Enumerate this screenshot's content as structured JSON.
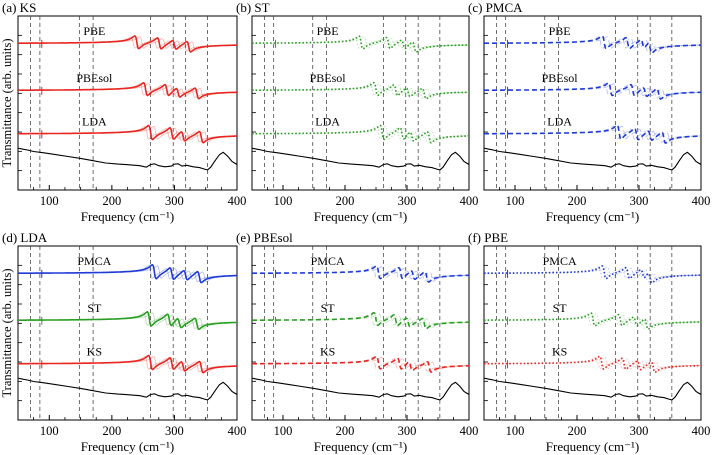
{
  "chart_data": [
    {
      "id": "a",
      "type": "line",
      "panel_label": "(a) KS",
      "xlabel": "Frequency (cm⁻¹)",
      "ylabel": "Transmittance (arb. units)",
      "xlim": [
        50,
        400
      ],
      "xticks": [
        100,
        200,
        300,
        400
      ],
      "reference_lines": [
        70,
        85,
        148,
        170,
        262,
        298,
        318,
        353
      ],
      "style": "solid",
      "traces": [
        {
          "label": "PBE",
          "color": "#e8251f",
          "modes": [
            [
              240,
              0.9
            ],
            [
              276,
              0.8
            ],
            [
              300,
              0.65
            ],
            [
              323,
              0.75
            ]
          ],
          "offset": 0.15
        },
        {
          "label": "PBEsol",
          "color": "#e8251f",
          "modes": [
            [
              254,
              0.9
            ],
            [
              288,
              0.8
            ],
            [
              306,
              0.65
            ],
            [
              336,
              0.75
            ]
          ],
          "offset": 0.15
        },
        {
          "label": "LDA",
          "color": "#e8251f",
          "modes": [
            [
              262,
              1.0
            ],
            [
              296,
              0.85
            ],
            [
              314,
              0.7
            ],
            [
              343,
              0.8
            ]
          ],
          "offset": 0.15
        }
      ]
    },
    {
      "id": "b",
      "type": "line",
      "panel_label": "(b) ST",
      "xlabel": "Frequency (cm⁻¹)",
      "ylabel": "",
      "xlim": [
        50,
        400
      ],
      "xticks": [
        100,
        200,
        300,
        400
      ],
      "reference_lines": [
        70,
        85,
        148,
        170,
        262,
        298,
        318,
        353
      ],
      "style": "dotted",
      "traces": [
        {
          "label": "PBE",
          "color": "#2a9e22",
          "modes": [
            [
              226,
              0.9
            ],
            [
              270,
              0.8
            ],
            [
              294,
              0.65
            ],
            [
              312,
              0.75
            ]
          ],
          "offset": 0.2
        },
        {
          "label": "PBEsol",
          "color": "#2a9e22",
          "modes": [
            [
              250,
              0.9
            ],
            [
              282,
              0.8
            ],
            [
              302,
              0.65
            ],
            [
              328,
              0.75
            ]
          ],
          "offset": 0.2
        },
        {
          "label": "LDA",
          "color": "#2a9e22",
          "modes": [
            [
              260,
              1.0
            ],
            [
              292,
              0.85
            ],
            [
              308,
              0.7
            ],
            [
              336,
              0.8
            ]
          ],
          "offset": 0.2
        }
      ]
    },
    {
      "id": "c",
      "type": "line",
      "panel_label": "(c) PMCA",
      "xlabel": "Frequency (cm⁻¹)",
      "ylabel": "",
      "xlim": [
        50,
        400
      ],
      "xticks": [
        100,
        200,
        300,
        400
      ],
      "reference_lines": [
        70,
        85,
        148,
        170,
        262,
        298,
        318,
        353
      ],
      "style": "dashed",
      "traces": [
        {
          "label": "PBE",
          "color": "#1f3bd6",
          "modes": [
            [
              244,
              0.9
            ],
            [
              282,
              0.8
            ],
            [
              306,
              0.65
            ],
            [
              318,
              0.75
            ]
          ],
          "offset": 0.15
        },
        {
          "label": "PBEsol",
          "color": "#1f3bd6",
          "modes": [
            [
              254,
              0.9
            ],
            [
              290,
              0.8
            ],
            [
              310,
              0.65
            ],
            [
              332,
              0.75
            ]
          ],
          "offset": 0.15
        },
        {
          "label": "LDA",
          "color": "#1f3bd6",
          "modes": [
            [
              268,
              1.0
            ],
            [
              296,
              0.85
            ],
            [
              318,
              0.7
            ],
            [
              340,
              0.8
            ]
          ],
          "offset": 0.15
        }
      ]
    },
    {
      "id": "d",
      "type": "line",
      "panel_label": "(d) LDA",
      "xlabel": "Frequency (cm⁻¹)",
      "ylabel": "Transmittance (arb. units)",
      "xlim": [
        50,
        400
      ],
      "xticks": [
        100,
        200,
        300,
        400
      ],
      "reference_lines": [
        70,
        85,
        148,
        170,
        262,
        298,
        318,
        353
      ],
      "style": "solid",
      "traces": [
        {
          "label": "PMCA",
          "color": "#1f3bd6",
          "modes": [
            [
              268,
              1.0
            ],
            [
              296,
              0.85
            ],
            [
              318,
              0.7
            ],
            [
              340,
              0.8
            ]
          ],
          "offset": 0.15
        },
        {
          "label": "ST",
          "color": "#2a9e22",
          "modes": [
            [
              260,
              1.0
            ],
            [
              292,
              0.85
            ],
            [
              308,
              0.7
            ],
            [
              336,
              0.8
            ]
          ],
          "offset": 0.15
        },
        {
          "label": "KS",
          "color": "#e8251f",
          "modes": [
            [
              262,
              1.0
            ],
            [
              296,
              0.85
            ],
            [
              314,
              0.7
            ],
            [
              343,
              0.8
            ]
          ],
          "offset": 0.15
        }
      ]
    },
    {
      "id": "e",
      "type": "line",
      "panel_label": "(e) PBEsol",
      "xlabel": "Frequency (cm⁻¹)",
      "ylabel": "",
      "xlim": [
        50,
        400
      ],
      "xticks": [
        100,
        200,
        300,
        400
      ],
      "reference_lines": [
        70,
        85,
        148,
        170,
        262,
        298,
        318,
        353
      ],
      "style": "dashed",
      "traces": [
        {
          "label": "PMCA",
          "color": "#1f3bd6",
          "modes": [
            [
              254,
              0.9
            ],
            [
              290,
              0.8
            ],
            [
              310,
              0.65
            ],
            [
              332,
              0.75
            ]
          ],
          "offset": 0.15
        },
        {
          "label": "ST",
          "color": "#2a9e22",
          "modes": [
            [
              250,
              0.9
            ],
            [
              282,
              0.8
            ],
            [
              302,
              0.65
            ],
            [
              328,
              0.75
            ]
          ],
          "offset": 0.15
        },
        {
          "label": "KS",
          "color": "#e8251f",
          "modes": [
            [
              254,
              0.9
            ],
            [
              288,
              0.8
            ],
            [
              306,
              0.65
            ],
            [
              336,
              0.75
            ]
          ],
          "offset": 0.15
        }
      ]
    },
    {
      "id": "f",
      "type": "line",
      "panel_label": "(f) PBE",
      "xlabel": "Frequency (cm⁻¹)",
      "ylabel": "",
      "xlim": [
        50,
        400
      ],
      "xticks": [
        100,
        200,
        300,
        400
      ],
      "reference_lines": [
        70,
        85,
        148,
        170,
        262,
        298,
        318,
        353
      ],
      "style": "dotted",
      "traces": [
        {
          "label": "PMCA",
          "color": "#1f3bd6",
          "modes": [
            [
              244,
              0.9
            ],
            [
              282,
              0.8
            ],
            [
              306,
              0.65
            ],
            [
              318,
              0.75
            ]
          ],
          "offset": 0.15
        },
        {
          "label": "ST",
          "color": "#2a9e22",
          "modes": [
            [
              226,
              0.9
            ],
            [
              270,
              0.8
            ],
            [
              294,
              0.65
            ],
            [
              312,
              0.75
            ]
          ],
          "offset": 0.15
        },
        {
          "label": "KS",
          "color": "#e8251f",
          "modes": [
            [
              240,
              0.9
            ],
            [
              276,
              0.8
            ],
            [
              300,
              0.65
            ],
            [
              323,
              0.75
            ]
          ],
          "offset": 0.15
        }
      ]
    }
  ],
  "experiment": {
    "color": "#000000",
    "points": [
      [
        50,
        0.55
      ],
      [
        58,
        0.52
      ],
      [
        65,
        0.5
      ],
      [
        75,
        0.46
      ],
      [
        90,
        0.43
      ],
      [
        110,
        0.38
      ],
      [
        130,
        0.33
      ],
      [
        150,
        0.28
      ],
      [
        170,
        0.22
      ],
      [
        190,
        0.16
      ],
      [
        210,
        0.13
      ],
      [
        230,
        0.11
      ],
      [
        245,
        0.09
      ],
      [
        255,
        0.05
      ],
      [
        262,
        0.12
      ],
      [
        268,
        0.14
      ],
      [
        275,
        0.09
      ],
      [
        285,
        0.06
      ],
      [
        295,
        0.08
      ],
      [
        300,
        0.13
      ],
      [
        306,
        0.14
      ],
      [
        312,
        0.08
      ],
      [
        320,
        0.1
      ],
      [
        330,
        0.06
      ],
      [
        340,
        0.04
      ],
      [
        348,
        0.0
      ],
      [
        353,
        -0.02
      ],
      [
        358,
        0.05
      ],
      [
        365,
        0.22
      ],
      [
        372,
        0.38
      ],
      [
        378,
        0.44
      ],
      [
        385,
        0.34
      ],
      [
        392,
        0.2
      ],
      [
        400,
        0.12
      ]
    ]
  }
}
